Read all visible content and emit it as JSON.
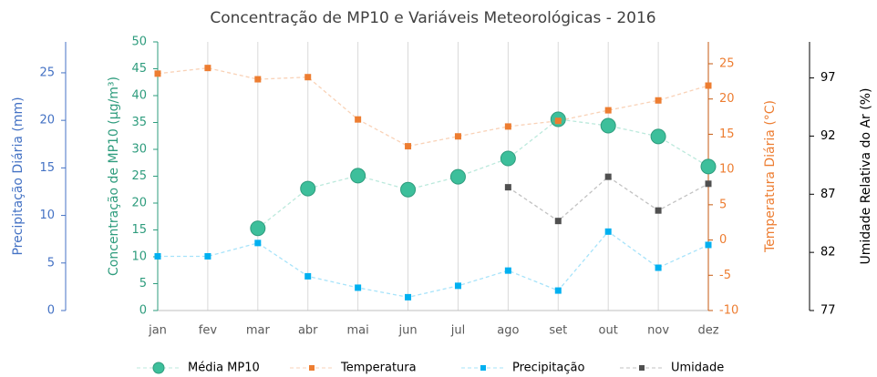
{
  "chart_data": {
    "type": "line",
    "title": "Concentração de MP10 e Variáveis Meteorológicas - 2016",
    "categories": [
      "jan",
      "fev",
      "mar",
      "abr",
      "mai",
      "jun",
      "jul",
      "ago",
      "set",
      "out",
      "nov",
      "dez"
    ],
    "y_label": "Concentração de MP10 (µg/m³)",
    "ylim": [
      0,
      50
    ],
    "yticks": [
      0,
      5,
      10,
      15,
      20,
      25,
      30,
      35,
      40,
      45,
      50
    ],
    "y2_label": "Temperatura Diária (°C)",
    "y2lim": [
      -10,
      28.1
    ],
    "y2ticks": [
      -10,
      -5,
      0,
      5,
      10,
      15,
      20,
      25
    ],
    "y3_label": "Precipitação Diária (mm)",
    "y3lim": [
      0,
      28.25
    ],
    "y3ticks": [
      0,
      5,
      10,
      15,
      20,
      25
    ],
    "y4_label": "Umidade Relativa do Ar (%)",
    "y4lim": [
      77,
      100.1
    ],
    "y4ticks": [
      77,
      82,
      87,
      92,
      97
    ],
    "grid": true,
    "series": [
      {
        "name": "Média MP10",
        "color": "#3dbf9b",
        "marker": "circle",
        "axis": "y",
        "values": [
          null,
          null,
          15.3,
          22.7,
          25.1,
          22.5,
          24.9,
          28.3,
          35.6,
          34.4,
          32.4,
          26.8
        ]
      },
      {
        "name": "Temperatura",
        "color": "#ed7d31",
        "marker": "square",
        "axis": "y2",
        "values": [
          23.6,
          24.4,
          22.8,
          23.1,
          17.1,
          13.3,
          14.7,
          16.1,
          16.9,
          18.4,
          19.8,
          21.9
        ]
      },
      {
        "name": "Precipitação",
        "color": "#00b0f0",
        "marker": "square",
        "axis": "y3",
        "values": [
          5.7,
          5.7,
          7.1,
          3.6,
          2.4,
          1.4,
          2.6,
          4.2,
          2.1,
          8.3,
          4.5,
          6.9
        ]
      },
      {
        "name": "Umidade",
        "color": "#505050",
        "marker": "square",
        "axis": "y4",
        "values": [
          null,
          null,
          null,
          null,
          null,
          null,
          null,
          87.6,
          84.7,
          88.5,
          85.6,
          87.9
        ]
      }
    ]
  }
}
